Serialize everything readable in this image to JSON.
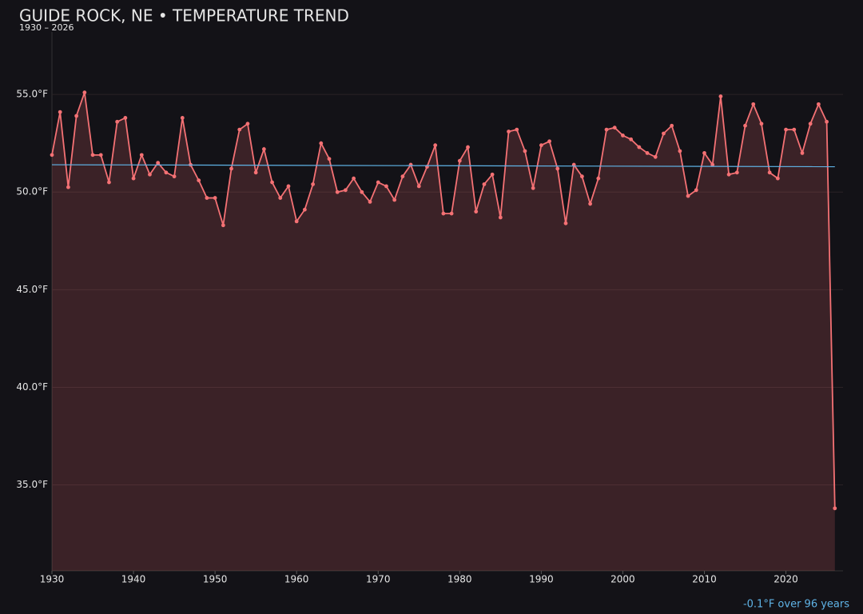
{
  "chart_data": {
    "type": "line",
    "title": "GUIDE ROCK, NE • TEMPERATURE TREND",
    "subtitle": "1930 – 2026",
    "annotation": "-0.1°F over 96 years",
    "x": [
      1930,
      1931,
      1932,
      1933,
      1934,
      1935,
      1936,
      1937,
      1938,
      1939,
      1940,
      1941,
      1942,
      1943,
      1944,
      1945,
      1946,
      1947,
      1948,
      1949,
      1950,
      1951,
      1952,
      1953,
      1954,
      1955,
      1956,
      1957,
      1958,
      1959,
      1960,
      1961,
      1962,
      1963,
      1964,
      1965,
      1966,
      1967,
      1968,
      1969,
      1970,
      1971,
      1972,
      1973,
      1974,
      1975,
      1976,
      1977,
      1978,
      1979,
      1980,
      1981,
      1982,
      1983,
      1984,
      1985,
      1986,
      1987,
      1988,
      1989,
      1990,
      1991,
      1992,
      1993,
      1994,
      1995,
      1996,
      1997,
      1998,
      1999,
      2000,
      2001,
      2002,
      2003,
      2004,
      2005,
      2006,
      2007,
      2008,
      2009,
      2010,
      2011,
      2012,
      2013,
      2014,
      2015,
      2016,
      2017,
      2018,
      2019,
      2020,
      2021,
      2022,
      2023,
      2024,
      2025,
      2026
    ],
    "series": [
      {
        "color": "#f47174",
        "values": [
          51.9,
          54.1,
          50.25,
          53.9,
          55.1,
          51.9,
          51.9,
          50.5,
          53.6,
          53.8,
          50.7,
          51.9,
          50.9,
          51.5,
          51.0,
          50.8,
          53.8,
          51.4,
          50.6,
          49.7,
          49.7,
          48.3,
          51.2,
          53.2,
          53.5,
          51.0,
          52.2,
          50.5,
          49.7,
          50.3,
          48.5,
          49.1,
          50.4,
          52.5,
          51.7,
          50.0,
          50.1,
          50.7,
          50.0,
          49.5,
          50.5,
          50.3,
          49.6,
          50.8,
          51.4,
          50.3,
          51.3,
          52.4,
          48.9,
          48.9,
          51.6,
          52.3,
          49.0,
          50.4,
          50.9,
          48.7,
          53.1,
          53.2,
          52.1,
          50.2,
          52.4,
          52.6,
          51.2,
          48.4,
          51.4,
          50.8,
          49.4,
          50.7,
          53.2,
          53.3,
          52.9,
          52.7,
          52.3,
          52.0,
          51.8,
          53.0,
          53.4,
          52.1,
          49.8,
          50.1,
          52.0,
          51.4,
          54.9,
          50.9,
          51.0,
          53.4,
          54.5,
          53.5,
          51.0,
          50.7,
          53.2,
          53.2,
          52.0,
          53.5,
          54.5,
          53.6,
          33.8
        ]
      }
    ],
    "trend": {
      "x": [
        1930,
        2026
      ],
      "values": [
        51.4,
        51.3
      ],
      "color": "#5fb3e6"
    },
    "xlim": [
      1930,
      2027
    ],
    "ylim": [
      30.6,
      58.2
    ],
    "xticks": [
      1930,
      1940,
      1950,
      1960,
      1970,
      1980,
      1990,
      2000,
      2010,
      2020
    ],
    "yticks": [
      {
        "value": 35,
        "label": "35.0°F"
      },
      {
        "value": 40,
        "label": "40.0°F"
      },
      {
        "value": 45,
        "label": "45.0°F"
      },
      {
        "value": 50,
        "label": "50.0°F"
      },
      {
        "value": 55,
        "label": "55.0°F"
      }
    ],
    "grid": true
  }
}
